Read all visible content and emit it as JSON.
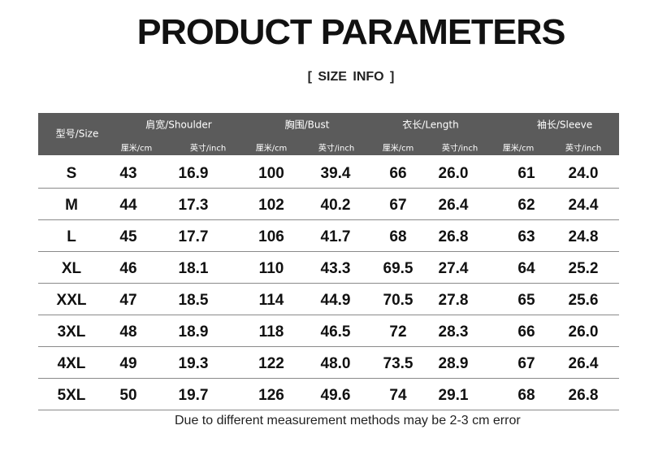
{
  "header": {
    "title": "PRODUCT PARAMETERS",
    "subtitle": "[ SIZE  INFO ]"
  },
  "table": {
    "size_header": "型号/Size",
    "groups": [
      {
        "label": "肩宽/Shoulder",
        "units": [
          "厘米/cm",
          "英寸/inch"
        ]
      },
      {
        "label": "胸围/Bust",
        "units": [
          "厘米/cm",
          "英寸/inch"
        ]
      },
      {
        "label": "衣长/Length",
        "units": [
          "厘米/cm",
          "英寸/inch"
        ]
      },
      {
        "label": "袖长/Sleeve",
        "units": [
          "厘米/cm",
          "英寸/inch"
        ]
      }
    ],
    "rows": [
      [
        "S",
        "43",
        "16.9",
        "100",
        "39.4",
        "66",
        "26.0",
        "61",
        "24.0"
      ],
      [
        "M",
        "44",
        "17.3",
        "102",
        "40.2",
        "67",
        "26.4",
        "62",
        "24.4"
      ],
      [
        "L",
        "45",
        "17.7",
        "106",
        "41.7",
        "68",
        "26.8",
        "63",
        "24.8"
      ],
      [
        "XL",
        "46",
        "18.1",
        "110",
        "43.3",
        "69.5",
        "27.4",
        "64",
        "25.2"
      ],
      [
        "XXL",
        "47",
        "18.5",
        "114",
        "44.9",
        "70.5",
        "27.8",
        "65",
        "25.6"
      ],
      [
        "3XL",
        "48",
        "18.9",
        "118",
        "46.5",
        "72",
        "28.3",
        "66",
        "26.0"
      ],
      [
        "4XL",
        "49",
        "19.3",
        "122",
        "48.0",
        "73.5",
        "28.9",
        "67",
        "26.4"
      ],
      [
        "5XL",
        "50",
        "19.7",
        "126",
        "49.6",
        "74",
        "29.1",
        "68",
        "26.8"
      ]
    ]
  },
  "note": "Due to different measurement methods may be 2-3 cm error"
}
